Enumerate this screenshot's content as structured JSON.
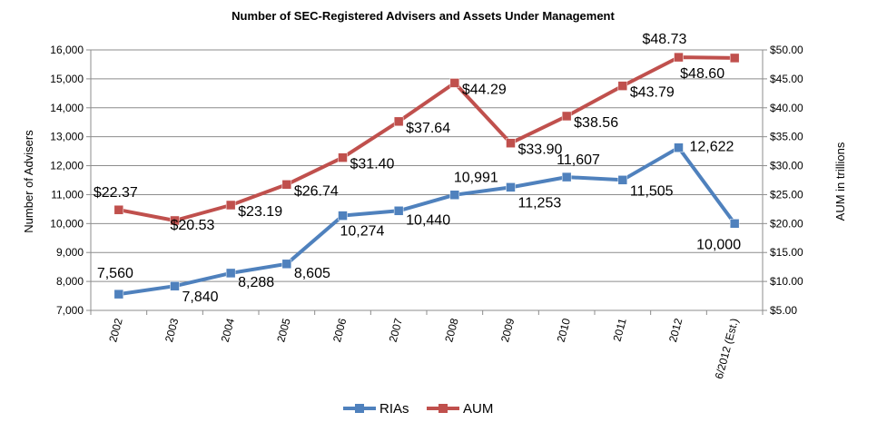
{
  "chart_data": {
    "type": "line",
    "title": "Number of SEC-Registered Advisers and Assets Under Management",
    "categories": [
      "2002",
      "2003",
      "2004",
      "2005",
      "2006",
      "2007",
      "2008",
      "2009",
      "2010",
      "2011",
      "2012",
      "6/2012 (Est.)"
    ],
    "y_left": {
      "label": "Number of Advisers",
      "ylim": [
        7000,
        16000
      ],
      "ticks": [
        "7,000",
        "8,000",
        "9,000",
        "10,000",
        "11,000",
        "12,000",
        "13,000",
        "14,000",
        "15,000",
        "16,000"
      ]
    },
    "y_right": {
      "label": "AUM in trillions",
      "ylim": [
        5,
        50
      ],
      "ticks": [
        "$5.00",
        "$10.00",
        "$15.00",
        "$20.00",
        "$25.00",
        "$30.00",
        "$35.00",
        "$40.00",
        "$45.00",
        "$50.00"
      ]
    },
    "series": [
      {
        "name": "RIAs",
        "axis": "left",
        "color": "#4f81bd",
        "values": [
          7560,
          7840,
          8288,
          8605,
          10274,
          10440,
          10991,
          11253,
          11607,
          11505,
          12622,
          10000
        ],
        "labels": [
          "7,560",
          "7,840",
          "8,288",
          "8,605",
          "10,274",
          "10,440",
          "10,991",
          "11,253",
          "11,607",
          "11,505",
          "12,622",
          "10,000"
        ]
      },
      {
        "name": "AUM",
        "axis": "right",
        "color": "#c0504d",
        "values": [
          22.37,
          20.53,
          23.19,
          26.74,
          31.4,
          37.64,
          44.29,
          33.9,
          38.56,
          43.79,
          48.73,
          48.6
        ],
        "labels": [
          "$22.37",
          "$20.53",
          "$23.19",
          "$26.74",
          "$31.40",
          "$37.64",
          "$44.29",
          "$33.90",
          "$38.56",
          "$43.79",
          "$48.73",
          "$48.60"
        ]
      }
    ],
    "grid": true,
    "legend_position": "bottom"
  }
}
